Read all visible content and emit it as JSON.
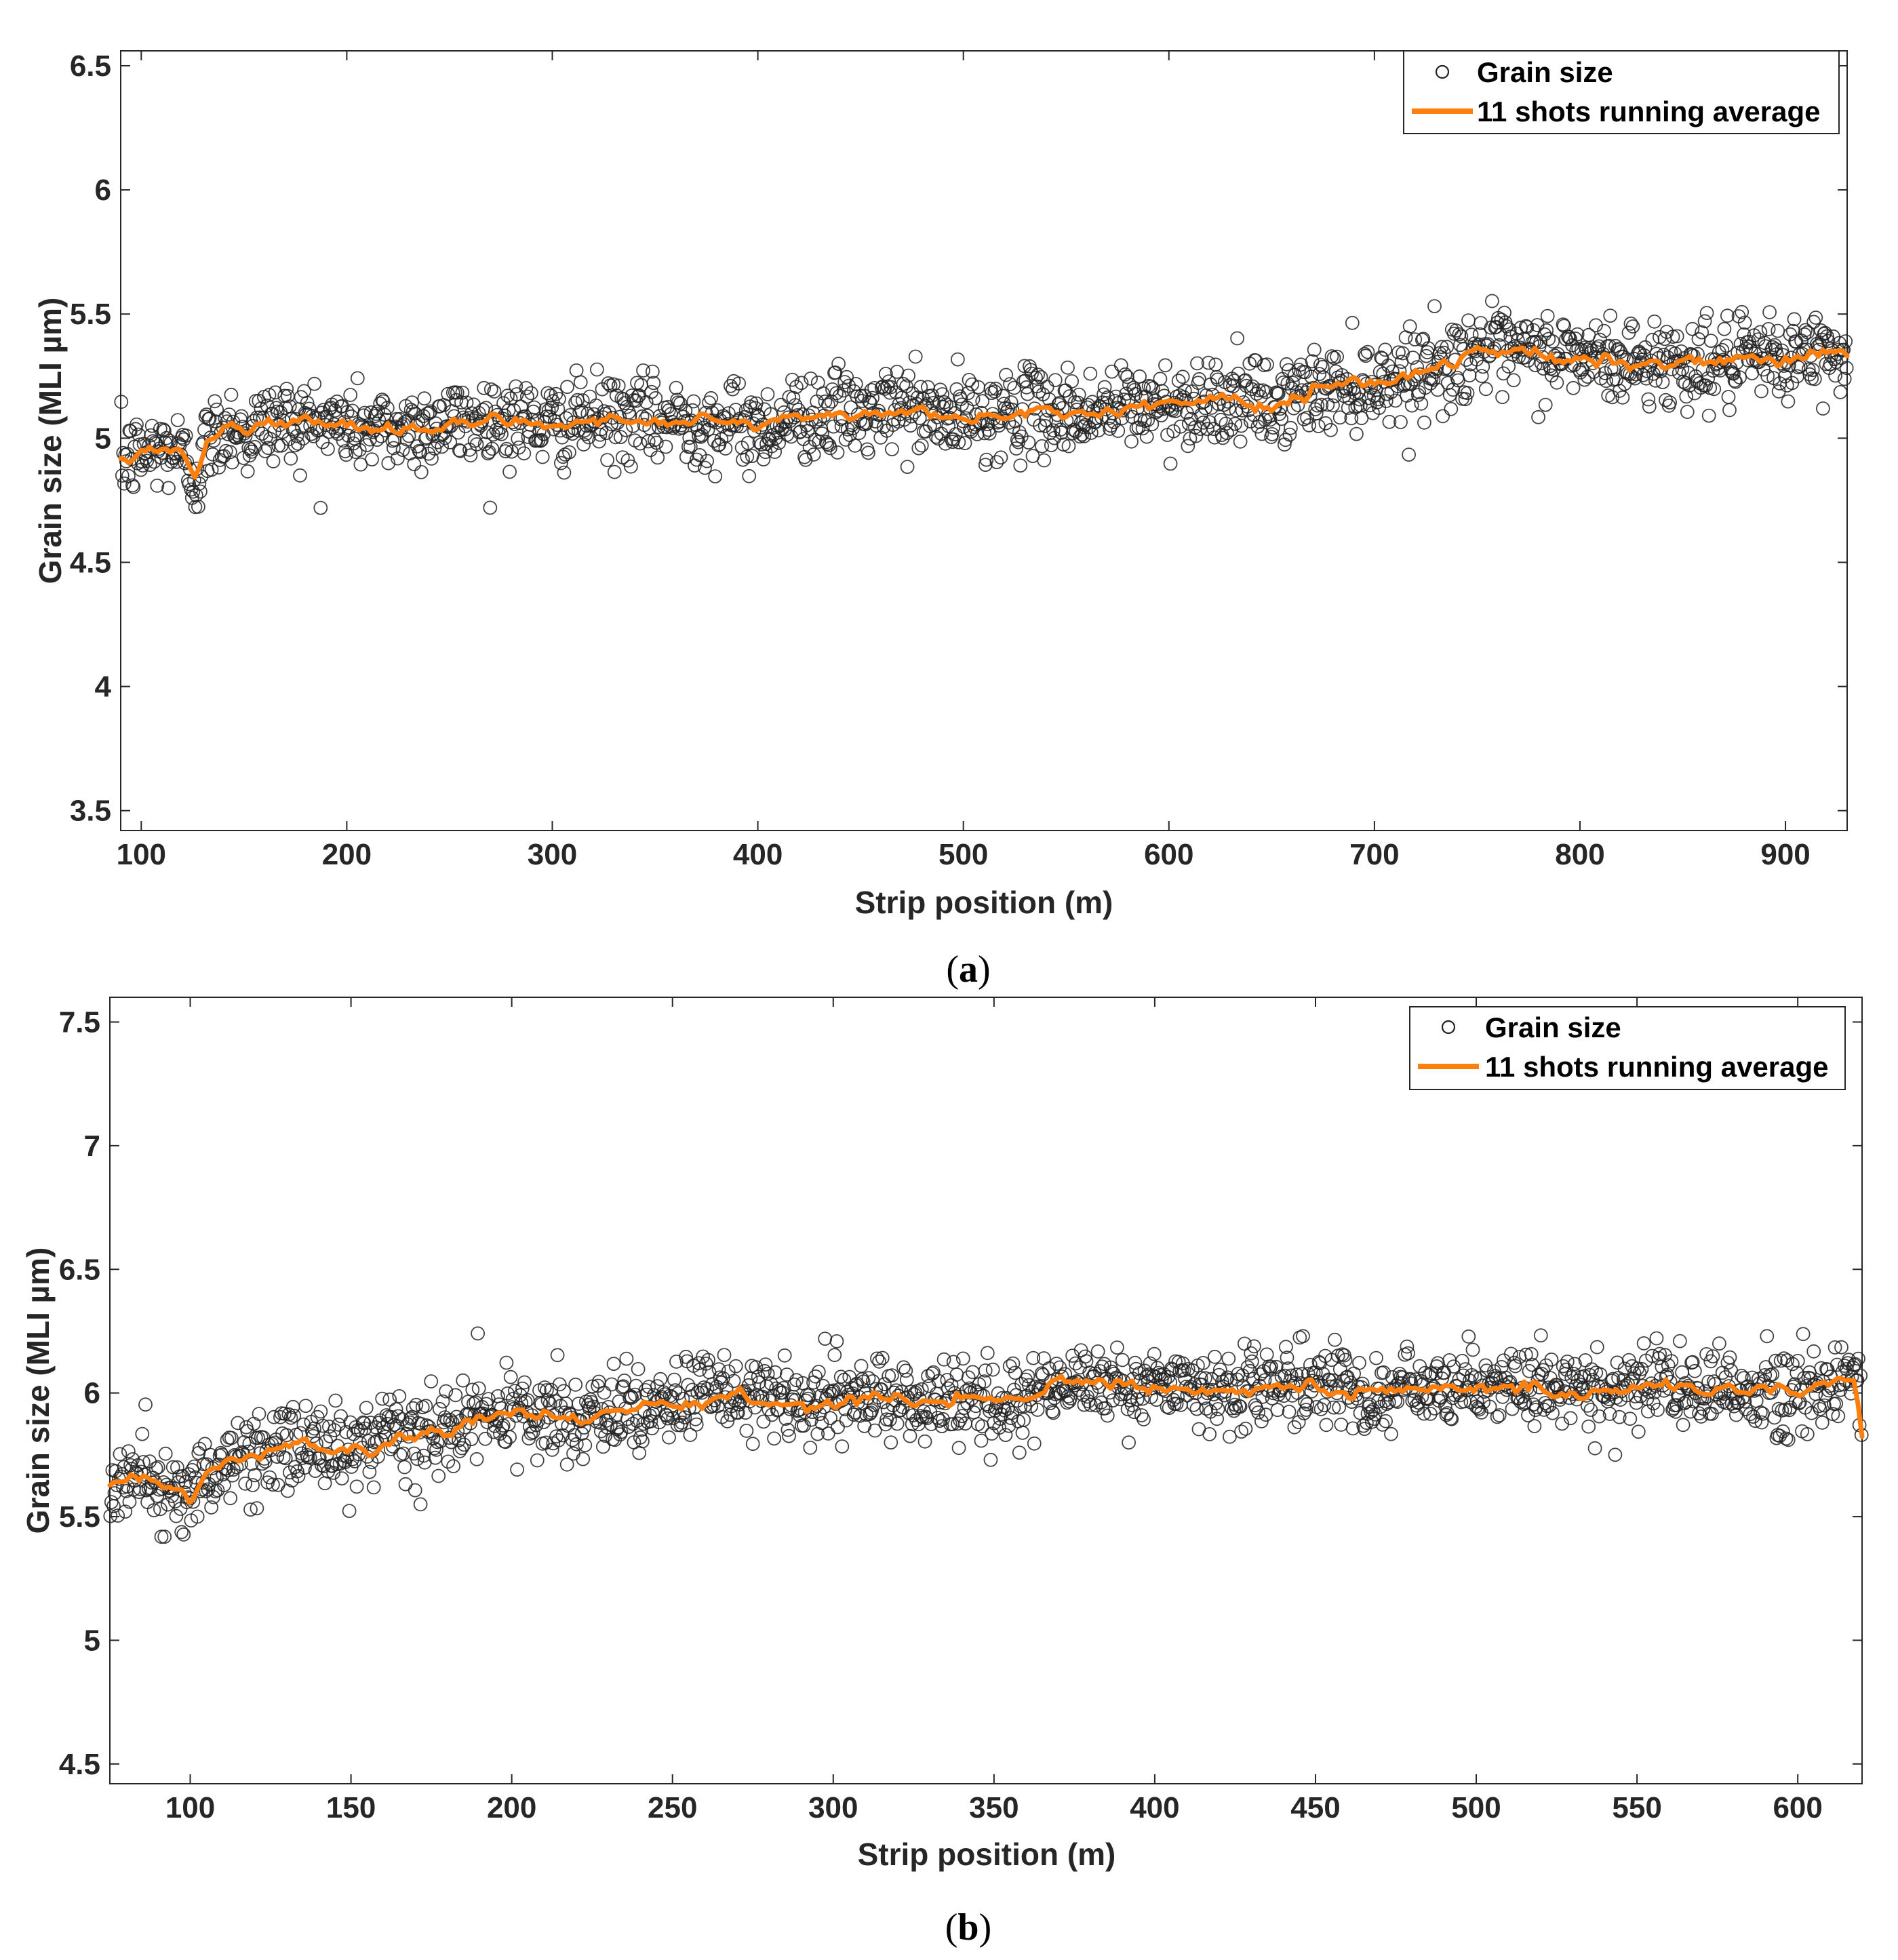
{
  "chart_data": [
    {
      "type": "scatter",
      "panel_label": "a",
      "xlabel": "Strip position (m)",
      "ylabel": "Grain size (MLI µm)",
      "xlim": [
        90,
        930
      ],
      "ylim": [
        3.42,
        6.56
      ],
      "xticks": [
        100,
        200,
        300,
        400,
        500,
        600,
        700,
        800,
        900
      ],
      "xtick_labels": [
        "100",
        "200",
        "300",
        "400",
        "500",
        "600",
        "700",
        "800",
        "900"
      ],
      "yticks": [
        3.5,
        4,
        4.5,
        5,
        5.5,
        6,
        6.5
      ],
      "ytick_labels": [
        "3.5",
        "4",
        "4.5",
        "5",
        "5.5",
        "6",
        "6.5"
      ],
      "legend": {
        "position": "top-right",
        "entries": [
          "Grain size",
          "11 shots running average"
        ]
      },
      "scatter_point_count": 1680,
      "scatter_spread": 0.085,
      "series": [
        {
          "name": "11 shots running average",
          "color": "#ff7f0e",
          "x": [
            90,
            100,
            110,
            118,
            123,
            127,
            132,
            138,
            145,
            150,
            160,
            180,
            200,
            220,
            240,
            260,
            275,
            290,
            300,
            320,
            340,
            360,
            380,
            400,
            420,
            440,
            460,
            470,
            480,
            490,
            500,
            520,
            540,
            560,
            580,
            600,
            620,
            640,
            650,
            660,
            680,
            700,
            720,
            740,
            750,
            760,
            780,
            800,
            820,
            840,
            860,
            880,
            900,
            930
          ],
          "values": [
            4.91,
            4.93,
            4.96,
            4.95,
            4.88,
            4.84,
            4.98,
            5.02,
            5.07,
            5.0,
            5.06,
            5.07,
            5.05,
            5.03,
            5.05,
            5.07,
            5.08,
            5.06,
            5.05,
            5.08,
            5.07,
            5.07,
            5.06,
            5.04,
            5.09,
            5.1,
            5.09,
            5.14,
            5.1,
            5.08,
            5.08,
            5.1,
            5.11,
            5.1,
            5.13,
            5.13,
            5.16,
            5.14,
            5.12,
            5.17,
            5.2,
            5.22,
            5.27,
            5.3,
            5.38,
            5.33,
            5.34,
            5.33,
            5.3,
            5.31,
            5.3,
            5.3,
            5.33,
            5.34
          ]
        }
      ],
      "colors": {
        "marker_edge": "#222222",
        "line": "#ff7f0e",
        "axes": "#262626",
        "grid": "none"
      }
    },
    {
      "type": "scatter",
      "panel_label": "b",
      "xlabel": "Strip position (m)",
      "ylabel": "Grain size (MLI µm)",
      "xlim": [
        75,
        620
      ],
      "ylim": [
        4.42,
        7.6
      ],
      "xticks": [
        100,
        150,
        200,
        250,
        300,
        350,
        400,
        450,
        500,
        550,
        600
      ],
      "xtick_labels": [
        "100",
        "150",
        "200",
        "250",
        "300",
        "350",
        "400",
        "450",
        "500",
        "550",
        "600"
      ],
      "yticks": [
        4.5,
        5,
        5.5,
        6,
        6.5,
        7,
        7.5
      ],
      "ytick_labels": [
        "4.5",
        "5",
        "5.5",
        "6",
        "6.5",
        "7",
        "7.5"
      ],
      "legend": {
        "position": "top-right",
        "entries": [
          "Grain size",
          "11 shots running average"
        ]
      },
      "scatter_point_count": 1650,
      "scatter_spread": 0.085,
      "series": [
        {
          "name": "11 shots running average",
          "color": "#ff7f0e",
          "x": [
            75,
            85,
            95,
            100,
            105,
            115,
            125,
            135,
            145,
            155,
            165,
            180,
            190,
            200,
            210,
            220,
            230,
            240,
            250,
            260,
            270,
            280,
            290,
            300,
            310,
            320,
            330,
            340,
            350,
            360,
            370,
            380,
            390,
            400,
            410,
            420,
            430,
            440,
            450,
            460,
            480,
            500,
            520,
            540,
            560,
            580,
            600,
            612,
            618,
            620
          ],
          "values": [
            5.63,
            5.66,
            5.6,
            5.56,
            5.68,
            5.73,
            5.76,
            5.8,
            5.78,
            5.77,
            5.8,
            5.85,
            5.9,
            5.92,
            5.9,
            5.87,
            5.92,
            5.95,
            5.96,
            5.99,
            5.98,
            5.97,
            5.94,
            5.96,
            6.0,
            5.97,
            5.96,
            5.98,
            5.96,
            5.97,
            6.03,
            6.05,
            6.04,
            6.03,
            6.01,
            6.0,
            6.02,
            6.04,
            6.02,
            6.0,
            6.01,
            6.02,
            6.02,
            6.01,
            6.02,
            6.01,
            6.0,
            6.04,
            6.08,
            5.85
          ]
        }
      ],
      "colors": {
        "marker_edge": "#222222",
        "line": "#ff7f0e",
        "axes": "#262626",
        "grid": "none"
      }
    }
  ]
}
